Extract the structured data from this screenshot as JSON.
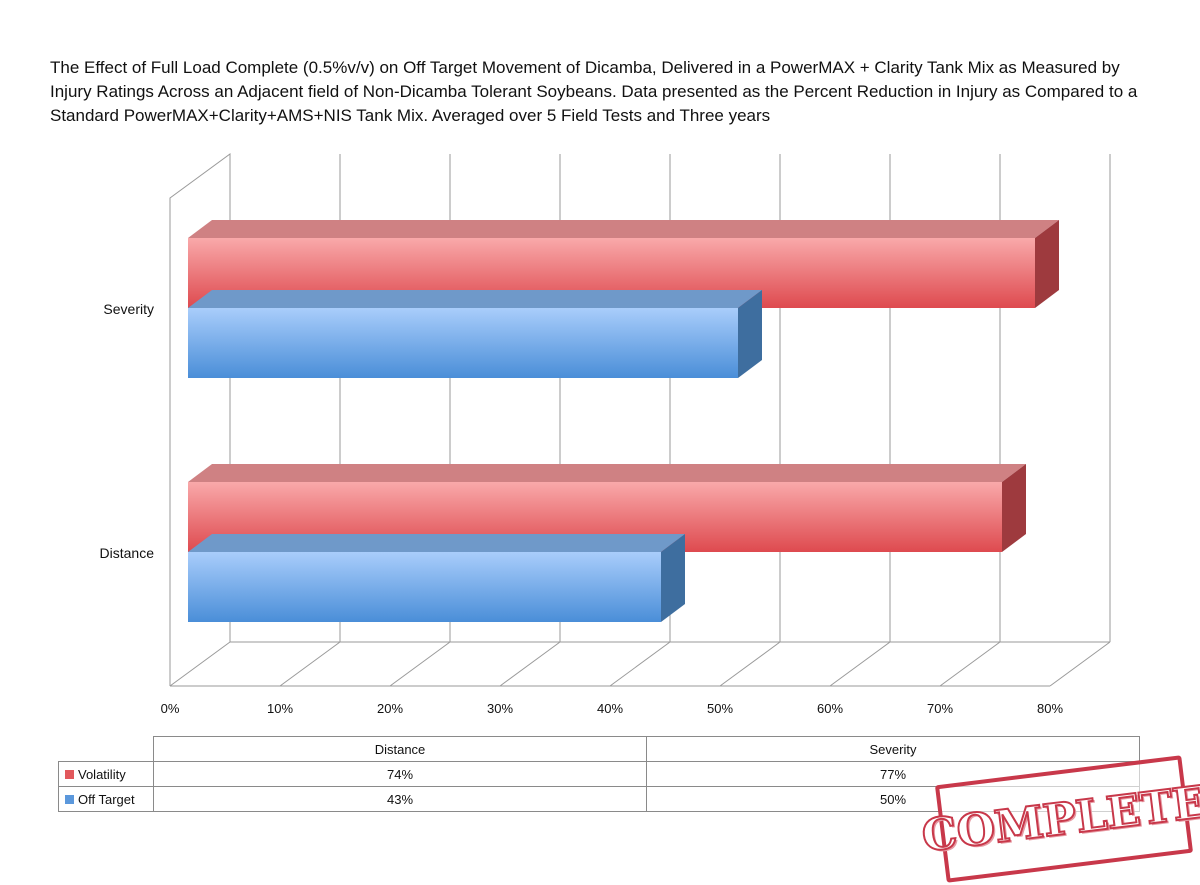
{
  "chart_data": {
    "type": "bar",
    "orientation": "horizontal",
    "style": "3d-clustered",
    "title": "The Effect of Full Load Complete (0.5%v/v) on Off Target Movement of Dicamba, Delivered in a PowerMAX + Clarity Tank Mix as Measured by Injury Ratings Across an Adjacent field of Non-Dicamba Tolerant Soybeans. Data presented as the Percent Reduction in Injury as Compared to a Standard PowerMAX+Clarity+AMS+NIS Tank Mix.  Averaged over 5 Field Tests and Three years",
    "categories": [
      "Distance",
      "Severity"
    ],
    "series": [
      {
        "name": "Volatility",
        "color": "#e2585c",
        "values": [
          74,
          77
        ],
        "value_labels": [
          "74%",
          "77%"
        ]
      },
      {
        "name": "Off Target",
        "color": "#5b98dc",
        "values": [
          43,
          50
        ],
        "value_labels": [
          "43%",
          "50%"
        ]
      }
    ],
    "xlim": [
      0,
      80
    ],
    "xticks": [
      0,
      10,
      20,
      30,
      40,
      50,
      60,
      70,
      80
    ],
    "xtick_labels": [
      "0%",
      "10%",
      "20%",
      "30%",
      "40%",
      "50%",
      "60%",
      "70%",
      "80%"
    ],
    "grid": true,
    "legend": "data-table-below"
  },
  "stamp": {
    "text": "COMPLETE"
  }
}
